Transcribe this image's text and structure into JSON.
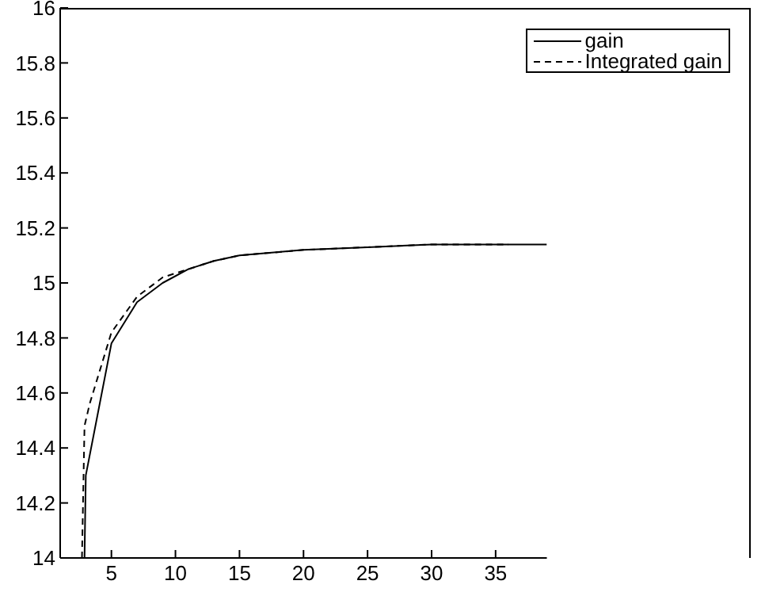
{
  "chart_data": {
    "type": "line",
    "xlim": [
      1,
      39
    ],
    "xticks": [
      5,
      10,
      15,
      20,
      25,
      30,
      35
    ],
    "ylim": [
      14,
      16
    ],
    "yticks": [
      14,
      14.2,
      14.4,
      14.6,
      14.8,
      15,
      15.2,
      15.4,
      15.6,
      15.8,
      16
    ],
    "legend": "top right",
    "marker": "none",
    "series": [
      {
        "name": "gain",
        "color": "#000000",
        "line_style": "solid",
        "x": [
          2.9,
          3,
          5,
          7,
          9,
          11,
          13,
          15,
          20,
          25,
          30,
          35,
          39
        ],
        "values": [
          14,
          14.3,
          14.78,
          14.93,
          15.0,
          15.05,
          15.08,
          15.1,
          15.12,
          15.13,
          15.14,
          15.14,
          15.14
        ]
      },
      {
        "name": "Integrated gain",
        "color": "#000000",
        "line_style": "dashed",
        "x": [
          2.7,
          2.9,
          3.3,
          5,
          7,
          9,
          11,
          13,
          15,
          20,
          25,
          30,
          36
        ],
        "values": [
          14,
          14.48,
          14.56,
          14.82,
          14.95,
          15.02,
          15.05,
          15.08,
          15.1,
          15.12,
          15.13,
          15.14,
          15.14
        ]
      }
    ]
  }
}
